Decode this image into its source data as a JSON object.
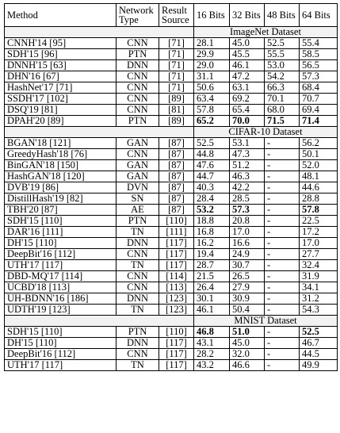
{
  "header": {
    "method": "Method",
    "network_type": "Network Type",
    "result_source": "Result Source",
    "b16": "16 Bits",
    "b32": "32 Bits",
    "b48": "48 Bits",
    "b64": "64 Bits"
  },
  "sections": [
    {
      "title": "ImageNet Dataset",
      "rows": [
        {
          "method": "CNNH'14 [95]",
          "type": "CNN",
          "source": "[71]",
          "v16": "28.1",
          "v32": "45.0",
          "v48": "52.5",
          "v64": "55.4",
          "bold": []
        },
        {
          "method": "SDH'15 [96]",
          "type": "PTN",
          "source": "[71]",
          "v16": "29.9",
          "v32": "45.5",
          "v48": "55.5",
          "v64": "58.5",
          "bold": []
        },
        {
          "method": "DNNH'15 [63]",
          "type": "DNN",
          "source": "[71]",
          "v16": "29.0",
          "v32": "46.1",
          "v48": "53.0",
          "v64": "56.5",
          "bold": []
        },
        {
          "method": "DHN'16 [67]",
          "type": "CNN",
          "source": "[71]",
          "v16": "31.1",
          "v32": "47.2",
          "v48": "54.2",
          "v64": "57.3",
          "bold": []
        },
        {
          "method": "HashNet'17 [71]",
          "type": "CNN",
          "source": "[71]",
          "v16": "50.6",
          "v32": "63.1",
          "v48": "66.3",
          "v64": "68.4",
          "bold": []
        },
        {
          "method": "SSDH'17 [102]",
          "type": "CNN",
          "source": "[89]",
          "v16": "63.4",
          "v32": "69.2",
          "v48": "70.1",
          "v64": "70.7",
          "bold": []
        },
        {
          "method": "DSQ'19 [81]",
          "type": "CNN",
          "source": "[81]",
          "v16": "57.8",
          "v32": "65.4",
          "v48": "68.0",
          "v64": "69.4",
          "bold": []
        },
        {
          "method": "DPAH'20 [89]",
          "type": "PTN",
          "source": "[89]",
          "v16": "65.2",
          "v32": "70.0",
          "v48": "71.5",
          "v64": "71.4",
          "bold": [
            "v16",
            "v32",
            "v48",
            "v64"
          ]
        }
      ]
    },
    {
      "title": "CIFAR-10 Dataset",
      "rows": [
        {
          "method": "BGAN'18 [121]",
          "type": "GAN",
          "source": "[87]",
          "v16": "52.5",
          "v32": "53.1",
          "v48": "-",
          "v64": "56.2",
          "bold": []
        },
        {
          "method": "GreedyHash'18 [76]",
          "type": "CNN",
          "source": "[87]",
          "v16": "44.8",
          "v32": "47.3",
          "v48": "-",
          "v64": "50.1",
          "bold": []
        },
        {
          "method": "BinGAN'18 [150]",
          "type": "GAN",
          "source": "[87]",
          "v16": "47.6",
          "v32": "51.2",
          "v48": "-",
          "v64": "52.0",
          "bold": []
        },
        {
          "method": "HashGAN'18 [120]",
          "type": "GAN",
          "source": "[87]",
          "v16": "44.7",
          "v32": "46.3",
          "v48": "-",
          "v64": "48.1",
          "bold": []
        },
        {
          "method": "DVB'19 [86]",
          "type": "DVN",
          "source": "[87]",
          "v16": "40.3",
          "v32": "42.2",
          "v48": "-",
          "v64": "44.6",
          "bold": []
        },
        {
          "method": "DistillHash'19 [82]",
          "type": "SN",
          "source": "[87]",
          "v16": "28.4",
          "v32": "28.5",
          "v48": "-",
          "v64": "28.8",
          "bold": []
        },
        {
          "method": "TBH'20 [87]",
          "type": "AE",
          "source": "[87]",
          "v16": "53.2",
          "v32": "57.3",
          "v48": "-",
          "v64": "57.8",
          "bold": [
            "v16",
            "v32",
            "v64"
          ]
        },
        {
          "method": "SDH'15 [110]",
          "type": "PTN",
          "source": "[110]",
          "v16": "18.8",
          "v32": "20.8",
          "v48": "-",
          "v64": "22.5",
          "bold": []
        },
        {
          "method": "DAR'16 [111]",
          "type": "TN",
          "source": "[111]",
          "v16": "16.8",
          "v32": "17.0",
          "v48": "-",
          "v64": "17.2",
          "bold": []
        },
        {
          "method": "DH'15 [110]",
          "type": "DNN",
          "source": "[117]",
          "v16": "16.2",
          "v32": "16.6",
          "v48": "-",
          "v64": "17.0",
          "bold": []
        },
        {
          "method": "DeepBit'16 [112]",
          "type": "CNN",
          "source": "[117]",
          "v16": "19.4",
          "v32": "24.9",
          "v48": "-",
          "v64": "27.7",
          "bold": []
        },
        {
          "method": "UTH'17 [117]",
          "type": "TN",
          "source": "[117]",
          "v16": "28.7",
          "v32": "30.7",
          "v48": "-",
          "v64": "32.4",
          "bold": []
        },
        {
          "method": "DBD-MQ'17 [114]",
          "type": "CNN",
          "source": "[114]",
          "v16": "21.5",
          "v32": "26.5",
          "v48": "-",
          "v64": "31.9",
          "bold": []
        },
        {
          "method": "UCBD'18 [113]",
          "type": "CNN",
          "source": "[113]",
          "v16": "26.4",
          "v32": "27.9",
          "v48": "-",
          "v64": "34.1",
          "bold": []
        },
        {
          "method": "UH-BDNN'16 [186]",
          "type": "DNN",
          "source": "[123]",
          "v16": "30.1",
          "v32": "30.9",
          "v48": "-",
          "v64": "31.2",
          "bold": [],
          "multiline": true
        },
        {
          "method": "UDTH'19 [123]",
          "type": "TN",
          "source": "[123]",
          "v16": "46.1",
          "v32": "50.4",
          "v48": "-",
          "v64": "54.3",
          "bold": []
        }
      ]
    },
    {
      "title": "MNIST Dataset",
      "rows": [
        {
          "method": "SDH'15 [110]",
          "type": "PTN",
          "source": "[110]",
          "v16": "46.8",
          "v32": "51.0",
          "v48": "-",
          "v64": "52.5",
          "bold": [
            "v16",
            "v32",
            "v64"
          ]
        },
        {
          "method": "DH'15 [110]",
          "type": "DNN",
          "source": "[117]",
          "v16": "43.1",
          "v32": "45.0",
          "v48": "-",
          "v64": "46.7",
          "bold": []
        },
        {
          "method": "DeepBit'16 [112]",
          "type": "CNN",
          "source": "[117]",
          "v16": "28.2",
          "v32": "32.0",
          "v48": "-",
          "v64": "44.5",
          "bold": []
        },
        {
          "method": "UTH'17 [117]",
          "type": "TN",
          "source": "[117]",
          "v16": "43.2",
          "v32": "46.6",
          "v48": "-",
          "v64": "49.9",
          "bold": []
        }
      ]
    }
  ]
}
